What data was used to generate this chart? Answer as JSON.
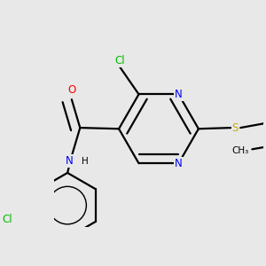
{
  "background_color": "#e8e8e8",
  "atom_colors": {
    "C": "#000000",
    "N": "#0000ee",
    "O": "#ff0000",
    "S": "#ccaa00",
    "Cl": "#00bb00",
    "H": "#000000"
  },
  "bond_color": "#000000",
  "bond_width": 1.6,
  "font_size_atoms": 8.5,
  "font_size_small": 7.5
}
